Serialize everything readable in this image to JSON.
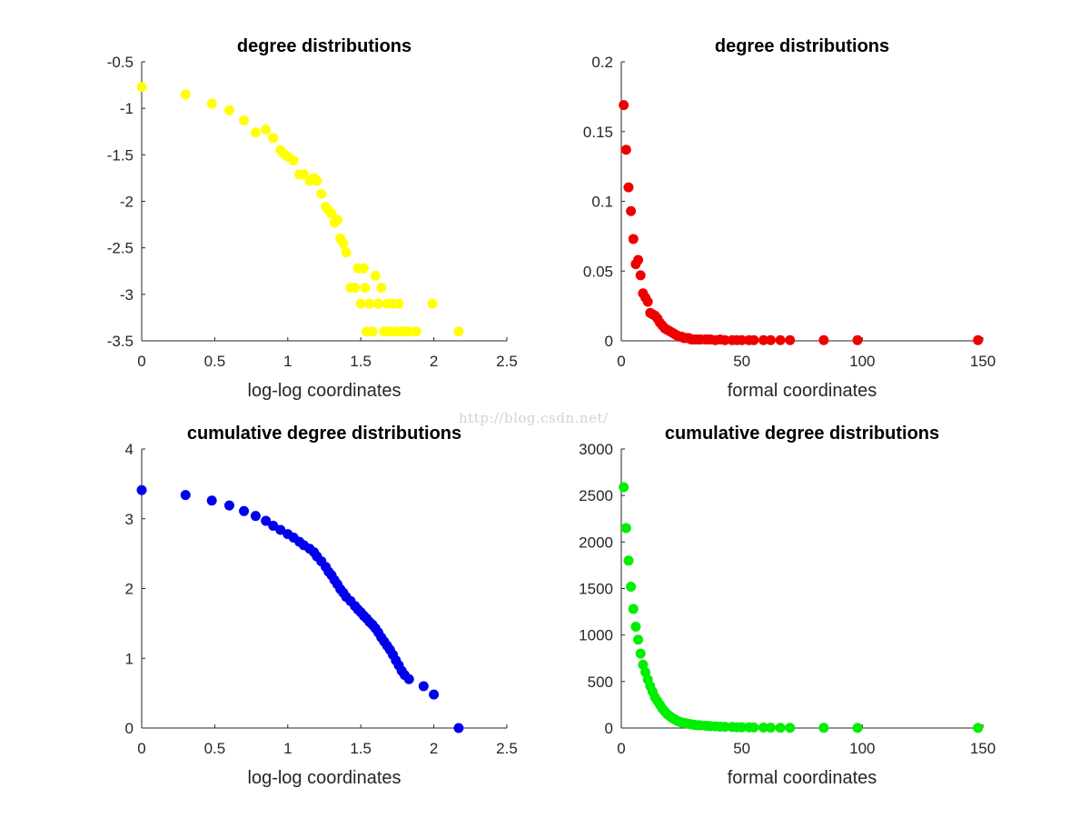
{
  "watermark": "http://blog.csdn.net/",
  "chart_data": [
    {
      "type": "scatter",
      "title": "degree distributions",
      "xlabel": "log-log coordinates",
      "ylabel": "",
      "xlim": [
        0,
        2.5
      ],
      "ylim": [
        -3.5,
        -0.5
      ],
      "xticks": [
        0,
        0.5,
        1,
        1.5,
        2,
        2.5
      ],
      "yticks": [
        -3.5,
        -3,
        -2.5,
        -2,
        -1.5,
        -1,
        -0.5
      ],
      "xticklabels": [
        "0",
        "0.5",
        "1",
        "1.5",
        "2",
        "2.5"
      ],
      "yticklabels": [
        "-3.5",
        "-3",
        "-2.5",
        "-2",
        "-1.5",
        "-1",
        "-0.5"
      ],
      "grid": false,
      "color": "#ffff00",
      "points": [
        [
          0,
          -0.77
        ],
        [
          0.3,
          -0.85
        ],
        [
          0.48,
          -0.95
        ],
        [
          0.6,
          -1.02
        ],
        [
          0.7,
          -1.13
        ],
        [
          0.78,
          -1.26
        ],
        [
          0.85,
          -1.23
        ],
        [
          0.9,
          -1.32
        ],
        [
          0.95,
          -1.45
        ],
        [
          0.98,
          -1.5
        ],
        [
          1.0,
          -1.52
        ],
        [
          1.04,
          -1.56
        ],
        [
          1.08,
          -1.71
        ],
        [
          1.11,
          -1.71
        ],
        [
          1.15,
          -1.78
        ],
        [
          1.18,
          -1.75
        ],
        [
          1.2,
          -1.78
        ],
        [
          1.23,
          -1.92
        ],
        [
          1.26,
          -2.06
        ],
        [
          1.28,
          -2.1
        ],
        [
          1.3,
          -2.13
        ],
        [
          1.32,
          -2.23
        ],
        [
          1.34,
          -2.2
        ],
        [
          1.36,
          -2.4
        ],
        [
          1.38,
          -2.45
        ],
        [
          1.4,
          -2.55
        ],
        [
          1.43,
          -2.93
        ],
        [
          1.46,
          -2.93
        ],
        [
          1.48,
          -2.72
        ],
        [
          1.5,
          -3.1
        ],
        [
          1.52,
          -2.72
        ],
        [
          1.53,
          -2.93
        ],
        [
          1.54,
          -3.4
        ],
        [
          1.56,
          -3.1
        ],
        [
          1.58,
          -3.4
        ],
        [
          1.6,
          -2.8
        ],
        [
          1.62,
          -3.1
        ],
        [
          1.64,
          -2.93
        ],
        [
          1.66,
          -3.4
        ],
        [
          1.68,
          -3.1
        ],
        [
          1.7,
          -3.4
        ],
        [
          1.72,
          -3.1
        ],
        [
          1.74,
          -3.4
        ],
        [
          1.76,
          -3.1
        ],
        [
          1.78,
          -3.4
        ],
        [
          1.8,
          -3.4
        ],
        [
          1.83,
          -3.4
        ],
        [
          1.88,
          -3.4
        ],
        [
          1.99,
          -3.1
        ],
        [
          2.17,
          -3.4
        ]
      ]
    },
    {
      "type": "scatter",
      "title": "degree distributions",
      "xlabel": "formal coordinates",
      "ylabel": "",
      "xlim": [
        0,
        150
      ],
      "ylim": [
        0,
        0.2
      ],
      "xticks": [
        0,
        50,
        100,
        150
      ],
      "yticks": [
        0,
        0.05,
        0.1,
        0.15,
        0.2
      ],
      "xticklabels": [
        "0",
        "50",
        "100",
        "150"
      ],
      "yticklabels": [
        "0",
        "0.05",
        "0.1",
        "0.15",
        "0.2"
      ],
      "grid": false,
      "color": "#ee0000",
      "points": [
        [
          1,
          0.169
        ],
        [
          2,
          0.137
        ],
        [
          3,
          0.11
        ],
        [
          4,
          0.093
        ],
        [
          5,
          0.073
        ],
        [
          6,
          0.055
        ],
        [
          7,
          0.058
        ],
        [
          8,
          0.047
        ],
        [
          9,
          0.034
        ],
        [
          10,
          0.031
        ],
        [
          11,
          0.028
        ],
        [
          12,
          0.02
        ],
        [
          13,
          0.019
        ],
        [
          14,
          0.018
        ],
        [
          15,
          0.016
        ],
        [
          16,
          0.013
        ],
        [
          17,
          0.011
        ],
        [
          18,
          0.009
        ],
        [
          19,
          0.008
        ],
        [
          20,
          0.007
        ],
        [
          21,
          0.006
        ],
        [
          22,
          0.005
        ],
        [
          23,
          0.004
        ],
        [
          24,
          0.003
        ],
        [
          25,
          0.003
        ],
        [
          26,
          0.002
        ],
        [
          27,
          0.002
        ],
        [
          28,
          0.002
        ],
        [
          29,
          0.001
        ],
        [
          30,
          0.001
        ],
        [
          31,
          0.001
        ],
        [
          32,
          0.001
        ],
        [
          33,
          0.001
        ],
        [
          35,
          0.001
        ],
        [
          36,
          0.001
        ],
        [
          37,
          0.001
        ],
        [
          39,
          0.0005
        ],
        [
          41,
          0.001
        ],
        [
          43,
          0.0005
        ],
        [
          46,
          0.0005
        ],
        [
          48,
          0.0005
        ],
        [
          50,
          0.0005
        ],
        [
          53,
          0.0005
        ],
        [
          55,
          0.0005
        ],
        [
          59,
          0.0005
        ],
        [
          62,
          0.0005
        ],
        [
          66,
          0.0005
        ],
        [
          70,
          0.0005
        ],
        [
          84,
          0.0005
        ],
        [
          98,
          0.0005
        ],
        [
          148,
          0.0005
        ]
      ]
    },
    {
      "type": "scatter",
      "title": "cumulative degree distributions",
      "xlabel": "log-log coordinates",
      "ylabel": "",
      "xlim": [
        0,
        2.5
      ],
      "ylim": [
        0,
        4
      ],
      "xticks": [
        0,
        0.5,
        1,
        1.5,
        2,
        2.5
      ],
      "yticks": [
        0,
        1,
        2,
        3,
        4
      ],
      "xticklabels": [
        "0",
        "0.5",
        "1",
        "1.5",
        "2",
        "2.5"
      ],
      "yticklabels": [
        "0",
        "1",
        "2",
        "3",
        "4"
      ],
      "grid": false,
      "color": "#0000ee",
      "points": [
        [
          0,
          3.41
        ],
        [
          0.3,
          3.34
        ],
        [
          0.48,
          3.26
        ],
        [
          0.6,
          3.19
        ],
        [
          0.7,
          3.11
        ],
        [
          0.78,
          3.04
        ],
        [
          0.85,
          2.97
        ],
        [
          0.9,
          2.9
        ],
        [
          0.95,
          2.84
        ],
        [
          1.0,
          2.78
        ],
        [
          1.04,
          2.73
        ],
        [
          1.08,
          2.67
        ],
        [
          1.11,
          2.62
        ],
        [
          1.15,
          2.57
        ],
        [
          1.18,
          2.52
        ],
        [
          1.2,
          2.46
        ],
        [
          1.23,
          2.39
        ],
        [
          1.26,
          2.31
        ],
        [
          1.28,
          2.24
        ],
        [
          1.3,
          2.19
        ],
        [
          1.32,
          2.12
        ],
        [
          1.34,
          2.06
        ],
        [
          1.36,
          1.99
        ],
        [
          1.38,
          1.94
        ],
        [
          1.4,
          1.88
        ],
        [
          1.43,
          1.82
        ],
        [
          1.46,
          1.75
        ],
        [
          1.48,
          1.7
        ],
        [
          1.5,
          1.66
        ],
        [
          1.52,
          1.61
        ],
        [
          1.54,
          1.57
        ],
        [
          1.56,
          1.52
        ],
        [
          1.58,
          1.48
        ],
        [
          1.6,
          1.43
        ],
        [
          1.62,
          1.37
        ],
        [
          1.64,
          1.3
        ],
        [
          1.66,
          1.24
        ],
        [
          1.68,
          1.18
        ],
        [
          1.7,
          1.12
        ],
        [
          1.72,
          1.05
        ],
        [
          1.74,
          0.97
        ],
        [
          1.76,
          0.9
        ],
        [
          1.78,
          0.82
        ],
        [
          1.8,
          0.76
        ],
        [
          1.83,
          0.7
        ],
        [
          1.93,
          0.6
        ],
        [
          2.0,
          0.48
        ],
        [
          2.17,
          0.0
        ]
      ]
    },
    {
      "type": "scatter",
      "title": "cumulative degree distributions",
      "xlabel": "formal coordinates",
      "ylabel": "",
      "xlim": [
        0,
        150
      ],
      "ylim": [
        0,
        3000
      ],
      "xticks": [
        0,
        50,
        100,
        150
      ],
      "yticks": [
        0,
        500,
        1000,
        1500,
        2000,
        2500,
        3000
      ],
      "xticklabels": [
        "0",
        "50",
        "100",
        "150"
      ],
      "yticklabels": [
        "0",
        "500",
        "1000",
        "1500",
        "2000",
        "2500",
        "3000"
      ],
      "grid": false,
      "color": "#00ee00",
      "points": [
        [
          1,
          2590
        ],
        [
          2,
          2150
        ],
        [
          3,
          1800
        ],
        [
          4,
          1520
        ],
        [
          5,
          1280
        ],
        [
          6,
          1090
        ],
        [
          7,
          950
        ],
        [
          8,
          800
        ],
        [
          9,
          680
        ],
        [
          10,
          600
        ],
        [
          11,
          520
        ],
        [
          12,
          450
        ],
        [
          13,
          390
        ],
        [
          14,
          330
        ],
        [
          15,
          290
        ],
        [
          16,
          250
        ],
        [
          17,
          210
        ],
        [
          18,
          180
        ],
        [
          19,
          150
        ],
        [
          20,
          130
        ],
        [
          21,
          110
        ],
        [
          22,
          95
        ],
        [
          23,
          80
        ],
        [
          24,
          70
        ],
        [
          25,
          60
        ],
        [
          26,
          55
        ],
        [
          27,
          50
        ],
        [
          28,
          45
        ],
        [
          29,
          40
        ],
        [
          30,
          35
        ],
        [
          31,
          32
        ],
        [
          32,
          30
        ],
        [
          33,
          28
        ],
        [
          35,
          25
        ],
        [
          36,
          22
        ],
        [
          37,
          20
        ],
        [
          39,
          18
        ],
        [
          41,
          15
        ],
        [
          43,
          13
        ],
        [
          46,
          11
        ],
        [
          48,
          9
        ],
        [
          50,
          8
        ],
        [
          53,
          7
        ],
        [
          55,
          6
        ],
        [
          59,
          5
        ],
        [
          62,
          4
        ],
        [
          66,
          3
        ],
        [
          70,
          2
        ],
        [
          84,
          2
        ],
        [
          98,
          1
        ],
        [
          148,
          1
        ]
      ]
    }
  ]
}
